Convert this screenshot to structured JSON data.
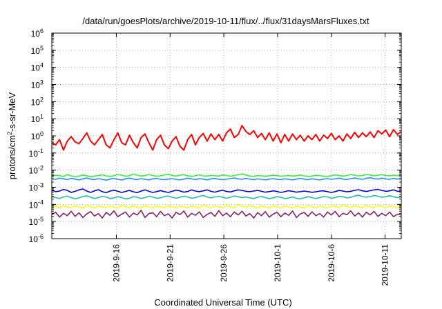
{
  "chart_data": {
    "type": "line",
    "title": "/data/run/goesPlots/archive/2019-10-11/flux/../flux/31daysMarsFluxes.txt",
    "xlabel": "Coordinated Universal Time (UTC)",
    "ylabel": {
      "pre": "protons/cm",
      "sup": "2",
      "post": "-s-sr-MeV"
    },
    "yscale": "log",
    "ylim": [
      1e-06,
      1000000.0
    ],
    "xlim": [
      "2019-09-10",
      "2019-10-12.5"
    ],
    "grid": true,
    "y_ticks": [
      {
        "value": 1e-06,
        "base": "10",
        "exp": "-6"
      },
      {
        "value": 1e-05,
        "base": "10",
        "exp": "-5"
      },
      {
        "value": 0.0001,
        "base": "10",
        "exp": "-4"
      },
      {
        "value": 0.001,
        "base": "10",
        "exp": "-3"
      },
      {
        "value": 0.01,
        "base": "10",
        "exp": "-2"
      },
      {
        "value": 0.1,
        "base": "10",
        "exp": "-1"
      },
      {
        "value": 1.0,
        "base": "10",
        "exp": "0"
      },
      {
        "value": 10.0,
        "base": "10",
        "exp": "1"
      },
      {
        "value": 100.0,
        "base": "10",
        "exp": "2"
      },
      {
        "value": 1000.0,
        "base": "10",
        "exp": "3"
      },
      {
        "value": 10000.0,
        "base": "10",
        "exp": "4"
      },
      {
        "value": 100000.0,
        "base": "10",
        "exp": "5"
      },
      {
        "value": 1000000.0,
        "base": "10",
        "exp": "6"
      }
    ],
    "x_ticks": [
      "2019-9-16",
      "2019-9-21",
      "2019-9-26",
      "2019-10-1",
      "2019-10-6",
      "2019-10-11"
    ],
    "series": [
      {
        "color": "#ff0000",
        "values": [
          0.4,
          0.3,
          0.6,
          0.15,
          0.5,
          0.9,
          0.45,
          0.35,
          0.7,
          1.5,
          0.5,
          0.3,
          0.6,
          1.2,
          0.3,
          0.2,
          0.6,
          1.5,
          0.4,
          0.3,
          1.1,
          0.4,
          0.2,
          0.8,
          1.3,
          0.4,
          0.15,
          0.6,
          1.1,
          0.3,
          0.18,
          0.5,
          0.9,
          0.25,
          0.15,
          0.6,
          1.2,
          0.3,
          0.8,
          1.4,
          0.5,
          1.3,
          0.6,
          1.2,
          0.5,
          1.5,
          2.5,
          0.8,
          1.2,
          4.0,
          1.8,
          1.2,
          2.0,
          0.8,
          1.4,
          0.6,
          1.5,
          0.5,
          1.3,
          0.4,
          1.2,
          0.5,
          1.3,
          0.6,
          1.1,
          0.5,
          1.0,
          0.6,
          1.2,
          0.5,
          1.1,
          0.7,
          1.4,
          0.6,
          1.0,
          0.5,
          1.3,
          0.7,
          1.6,
          0.8,
          1.5,
          0.9,
          1.7,
          0.8,
          2.0,
          1.3,
          2.2,
          0.9,
          2.3,
          1.2,
          1.8
        ]
      },
      {
        "color": "#33ee33",
        "values": [
          0.0045,
          0.005,
          0.0048,
          0.0042,
          0.0055,
          0.0046,
          0.004,
          0.0045,
          0.0052,
          0.0047,
          0.0041,
          0.0044,
          0.0049,
          0.0053,
          0.0046,
          0.0042,
          0.0048,
          0.0056,
          0.005,
          0.0044,
          0.0047,
          0.0058,
          0.0051,
          0.0045,
          0.0049,
          0.0055,
          0.0048,
          0.0044,
          0.0046,
          0.0052,
          0.0057,
          0.0049,
          0.0045,
          0.0051,
          0.0054,
          0.0047,
          0.0043,
          0.0048,
          0.0053,
          0.0046,
          0.0044,
          0.005,
          0.0047,
          0.0045,
          0.0052,
          0.0049,
          0.0044,
          0.0048,
          0.0055,
          0.006,
          0.0052,
          0.0045,
          0.0043,
          0.0049,
          0.0046,
          0.0043,
          0.0047,
          0.0051,
          0.0048,
          0.0044,
          0.0046,
          0.0049,
          0.0045,
          0.0047,
          0.0052,
          0.0046,
          0.0043,
          0.0045,
          0.005,
          0.0048,
          0.0044,
          0.0042,
          0.0047,
          0.0053,
          0.0049,
          0.0045,
          0.0048,
          0.0056,
          0.0051,
          0.0046,
          0.0049,
          0.0055,
          0.0052,
          0.0047,
          0.005,
          0.0054,
          0.0049,
          0.0046,
          0.0051,
          0.0048,
          0.0052
        ]
      },
      {
        "color": "#1e90ff",
        "values": [
          0.0032,
          0.0029,
          0.0034,
          0.0031,
          0.0028,
          0.0033,
          0.003,
          0.0027,
          0.0031,
          0.0035,
          0.003,
          0.0028,
          0.0032,
          0.0029,
          0.0026,
          0.003,
          0.0033,
          0.0029,
          0.0027,
          0.0031,
          0.0034,
          0.003,
          0.0028,
          0.0032,
          0.0029,
          0.0027,
          0.0031,
          0.0033,
          0.0029,
          0.0028,
          0.003,
          0.0032,
          0.0029,
          0.0027,
          0.003,
          0.0034,
          0.0031,
          0.0028,
          0.0032,
          0.003,
          0.0027,
          0.0031,
          0.0033,
          0.0029,
          0.0028,
          0.003,
          0.0032,
          0.0035,
          0.0031,
          0.0029,
          0.0033,
          0.003,
          0.0028,
          0.0031,
          0.0029,
          0.0027,
          0.003,
          0.0032,
          0.0029,
          0.0028,
          0.0031,
          0.0029,
          0.0027,
          0.003,
          0.0033,
          0.003,
          0.0028,
          0.0031,
          0.0029,
          0.0027,
          0.003,
          0.0032,
          0.0029,
          0.0031,
          0.0034,
          0.003,
          0.0028,
          0.0032,
          0.0035,
          0.0031,
          0.0029,
          0.0033,
          0.0036,
          0.0032,
          0.003,
          0.0034,
          0.0031,
          0.0029,
          0.0033,
          0.003,
          0.0032
        ]
      },
      {
        "color": "#0000ee",
        "values": [
          0.0007,
          0.00055,
          0.0006,
          0.00075,
          0.00065,
          0.0005,
          0.00058,
          0.0007,
          0.0008,
          0.0006,
          0.0005,
          0.00062,
          0.00072,
          0.00055,
          0.00048,
          0.0006,
          0.00068,
          0.00058,
          0.0005,
          0.00057,
          0.00066,
          0.00054,
          0.00049,
          0.0006,
          0.0007,
          0.00058,
          0.0005,
          0.00056,
          0.00064,
          0.00055,
          0.0005,
          0.00058,
          0.00068,
          0.00062,
          0.00052,
          0.00057,
          0.0007,
          0.0006,
          0.00055,
          0.00062,
          0.0007,
          0.00058,
          0.00052,
          0.0006,
          0.00068,
          0.00057,
          0.00053,
          0.00062,
          0.0007,
          0.00065,
          0.00058,
          0.00055,
          0.0006,
          0.00066,
          0.00058,
          0.00052,
          0.00056,
          0.00062,
          0.00057,
          0.0005,
          0.00055,
          0.00063,
          0.00058,
          0.00052,
          0.00055,
          0.0006,
          0.00056,
          0.00051,
          0.00054,
          0.0006,
          0.00062,
          0.00055,
          0.0005,
          0.00056,
          0.00065,
          0.0006,
          0.00054,
          0.00058,
          0.00066,
          0.00072,
          0.00062,
          0.00057,
          0.00063,
          0.0007,
          0.00075,
          0.00065,
          0.00058,
          0.00062,
          0.0007,
          0.00058,
          0.0006
        ]
      },
      {
        "color": "#20c0a0",
        "values": [
          0.00028,
          0.00025,
          0.00022,
          0.00027,
          0.0003,
          0.00025,
          0.00021,
          0.00024,
          0.00029,
          0.00032,
          0.00026,
          0.00022,
          0.00025,
          0.0003,
          0.00027,
          0.00022,
          0.00024,
          0.00028,
          0.00025,
          0.00021,
          0.00023,
          0.00028,
          0.00026,
          0.00022,
          0.00025,
          0.0003,
          0.00027,
          0.00023,
          0.00024,
          0.00029,
          0.00031,
          0.00026,
          0.00023,
          0.00026,
          0.0003,
          0.00027,
          0.00023,
          0.00025,
          0.0003,
          0.00033,
          0.00027,
          0.00024,
          0.00027,
          0.0003,
          0.00026,
          0.00023,
          0.00026,
          0.00031,
          0.00028,
          0.00025,
          0.00027,
          0.00024,
          0.00022,
          0.00026,
          0.00029,
          0.00025,
          0.00022,
          0.00024,
          0.00028,
          0.00026,
          0.00022,
          0.00024,
          0.00027,
          0.00023,
          0.00021,
          0.00024,
          0.00028,
          0.00025,
          0.00022,
          0.00025,
          0.00029,
          0.00027,
          0.00023,
          0.00025,
          0.0003,
          0.00028,
          0.00024,
          0.00026,
          0.00031,
          0.00034,
          0.00029,
          0.00026,
          0.00029,
          0.00033,
          0.0003,
          0.00026,
          0.00028,
          0.00032,
          0.00028,
          0.00025,
          0.00027
        ]
      },
      {
        "color": "#ffff00",
        "values": [
          7e-05,
          8e-05,
          6e-05,
          9e-05,
          7e-05,
          6.5e-05,
          8.5e-05,
          7e-05,
          6e-05,
          9e-05,
          7.5e-05,
          6e-05,
          8e-05,
          7e-05,
          6.5e-05,
          8.5e-05,
          7e-05,
          6e-05,
          9e-05,
          7.5e-05,
          6.2e-05,
          8.2e-05,
          7e-05,
          6e-05,
          8.8e-05,
          7.2e-05,
          6e-05,
          8e-05,
          7e-05,
          6.5e-05,
          8.5e-05,
          7.3e-05,
          6.1e-05,
          8.6e-05,
          7.1e-05,
          6.3e-05,
          8.3e-05,
          7e-05,
          6e-05,
          9.2e-05,
          7.5e-05,
          6.4e-05,
          8.4e-05,
          7.1e-05,
          6.2e-05,
          8.9e-05,
          7.4e-05,
          6.3e-05,
          9.5e-05,
          8e-05,
          6.8e-05,
          8.6e-05,
          7.2e-05,
          6.1e-05,
          8.4e-05,
          7e-05,
          6e-05,
          8.7e-05,
          7.3e-05,
          6.2e-05,
          8.5e-05,
          7.1e-05,
          6e-05,
          8.3e-05,
          7e-05,
          6.1e-05,
          8.8e-05,
          7.4e-05,
          6.3e-05,
          8.5e-05,
          7.1e-05,
          6.2e-05,
          8.9e-05,
          7.5e-05,
          6.4e-05,
          9.1e-05,
          7.6e-05,
          6.5e-05,
          8.7e-05,
          7.3e-05,
          6.2e-05,
          8.8e-05,
          7.4e-05,
          6.3e-05,
          9e-05,
          7.6e-05,
          6.4e-05,
          8.6e-05,
          7.2e-05,
          6.3e-05,
          8e-05
        ]
      },
      {
        "color": "#8b2060",
        "values": [
          2.5e-05,
          3.5e-05,
          1.8e-05,
          3e-05,
          2.2e-05,
          4e-05,
          2e-05,
          3.2e-05,
          1.7e-05,
          2.8e-05,
          3.8e-05,
          2.1e-05,
          2.9e-05,
          1.6e-05,
          3.4e-05,
          2.3e-05,
          4.2e-05,
          1.9e-05,
          2.7e-05,
          3.6e-05,
          1.8e-05,
          3.1e-05,
          2.4e-05,
          4.5e-05,
          1.7e-05,
          2.9e-05,
          3.3e-05,
          1.9e-05,
          3.9e-05,
          2.2e-05,
          2.8e-05,
          1.6e-05,
          3.5e-05,
          2.5e-05,
          4.1e-05,
          1.8e-05,
          3e-05,
          2.3e-05,
          3.7e-05,
          1.7e-05,
          2.6e-05,
          3.4e-05,
          2e-05,
          4.3e-05,
          2.2e-05,
          3.1e-05,
          1.9e-05,
          3.6e-05,
          2.4e-05,
          4e-05,
          2.1e-05,
          2.9e-05,
          1.6e-05,
          3.3e-05,
          2.2e-05,
          3.8e-05,
          1.8e-05,
          2.7e-05,
          3.5e-05,
          1.9e-05,
          3.1e-05,
          2.3e-05,
          4.1e-05,
          1.7e-05,
          2.8e-05,
          3.4e-05,
          2e-05,
          3.7e-05,
          2.2e-05,
          2.9e-05,
          1.8e-05,
          3.6e-05,
          2.4e-05,
          3.9e-05,
          1.9e-05,
          3e-05,
          2.5e-05,
          4.2e-05,
          2.1e-05,
          3.2e-05,
          1.8e-05,
          3.5e-05,
          2.4e-05,
          3.9e-05,
          2e-05,
          3e-05,
          2.2e-05,
          3.6e-05,
          1.9e-05,
          2.7e-05,
          2.4e-05
        ]
      }
    ]
  }
}
